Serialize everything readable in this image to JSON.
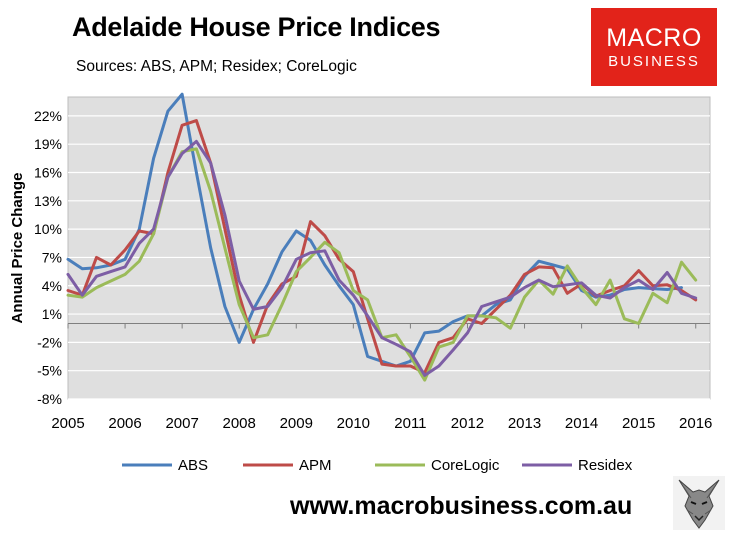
{
  "header": {
    "title": "Adelaide House Price Indices",
    "subtitle": "Sources: ABS, APM; Residex; CoreLogic"
  },
  "logo": {
    "line1": "MACRO",
    "line2": "BUSINESS"
  },
  "footer": {
    "url": "www.macrobusiness.com.au"
  },
  "colors": {
    "logo_bg": "#e2231a",
    "plot_bg": "#dfdfdf"
  },
  "chart_data": {
    "type": "line",
    "title": "Adelaide House Price Indices",
    "ylabel": "Annual Price Change",
    "xlabel": "",
    "xlim": [
      2005,
      2016.25
    ],
    "ylim": [
      -8,
      24
    ],
    "grid": "horizontal",
    "legend": "bottom",
    "x_ticks": [
      "2005",
      "2006",
      "2007",
      "2008",
      "2009",
      "2010",
      "2011",
      "2012",
      "2013",
      "2014",
      "2015",
      "2016"
    ],
    "y_ticks": [
      "22%",
      "19%",
      "16%",
      "13%",
      "10%",
      "7%",
      "4%",
      "1%",
      "-2%",
      "-5%",
      "-8%"
    ],
    "x": [
      2005.0,
      2005.25,
      2005.5,
      2005.75,
      2006.0,
      2006.25,
      2006.5,
      2006.75,
      2007.0,
      2007.25,
      2007.5,
      2007.75,
      2008.0,
      2008.25,
      2008.5,
      2008.75,
      2009.0,
      2009.25,
      2009.5,
      2009.75,
      2010.0,
      2010.25,
      2010.5,
      2010.75,
      2011.0,
      2011.25,
      2011.5,
      2011.75,
      2012.0,
      2012.25,
      2012.5,
      2012.75,
      2013.0,
      2013.25,
      2013.5,
      2013.75,
      2014.0,
      2014.25,
      2014.5,
      2014.75,
      2015.0,
      2015.25,
      2015.5,
      2015.75,
      2016.0,
      2016.25
    ],
    "series": [
      {
        "name": "ABS",
        "color": "#4a7ebb",
        "values": [
          6.8,
          5.8,
          5.9,
          6.2,
          6.8,
          10.0,
          17.5,
          22.5,
          24.3,
          16.0,
          8.0,
          1.8,
          -2.0,
          1.5,
          4.2,
          7.6,
          9.8,
          8.8,
          6.2,
          4.0,
          2.0,
          -3.5,
          -4.0,
          -4.5,
          -4.0,
          -1.0,
          -0.8,
          0.2,
          0.8,
          0.8,
          2.0,
          2.5,
          5.0,
          6.6,
          6.2,
          5.8,
          3.5,
          2.8,
          3.0,
          3.6,
          3.8,
          3.7,
          3.6,
          3.8,
          null,
          null
        ]
      },
      {
        "name": "APM",
        "color": "#be4b48",
        "values": [
          3.5,
          3.0,
          7.0,
          6.2,
          7.8,
          9.8,
          9.5,
          16.0,
          21.0,
          21.5,
          17.0,
          10.0,
          3.0,
          -2.0,
          2.0,
          4.2,
          5.0,
          10.8,
          9.3,
          6.8,
          5.5,
          0.5,
          -4.3,
          -4.5,
          -4.5,
          -5.2,
          -2.0,
          -1.5,
          0.5,
          0.0,
          1.5,
          3.0,
          5.2,
          6.0,
          5.9,
          3.2,
          4.2,
          2.9,
          3.5,
          4.0,
          5.6,
          4.0,
          4.1,
          3.5,
          2.5,
          null
        ]
      },
      {
        "name": "CoreLogic",
        "color": "#9bbb59",
        "values": [
          3.0,
          2.8,
          3.8,
          4.5,
          5.2,
          6.6,
          9.5,
          15.5,
          18.2,
          18.5,
          14.0,
          8.0,
          2.0,
          -1.5,
          -1.2,
          2.0,
          5.5,
          7.0,
          8.6,
          7.5,
          3.5,
          2.5,
          -1.5,
          -1.2,
          -3.5,
          -6.0,
          -2.5,
          -2.0,
          0.8,
          0.8,
          0.6,
          -0.5,
          2.8,
          4.6,
          3.1,
          6.1,
          3.8,
          2.0,
          4.6,
          0.5,
          0.0,
          3.2,
          2.2,
          6.5,
          4.6,
          null
        ]
      },
      {
        "name": "Residex",
        "color": "#7d5ea5",
        "values": [
          5.2,
          3.0,
          5.0,
          5.5,
          6.0,
          8.5,
          10.0,
          15.5,
          18.0,
          19.3,
          17.0,
          11.5,
          4.5,
          1.5,
          1.8,
          3.8,
          6.8,
          7.5,
          7.7,
          4.6,
          3.0,
          0.8,
          -1.5,
          -2.2,
          -3.0,
          -5.5,
          -4.5,
          -2.8,
          -1.0,
          1.8,
          2.3,
          2.8,
          3.8,
          4.6,
          3.9,
          4.1,
          4.3,
          3.0,
          2.7,
          3.8,
          4.6,
          3.6,
          5.4,
          3.2,
          2.7,
          null
        ]
      }
    ]
  }
}
